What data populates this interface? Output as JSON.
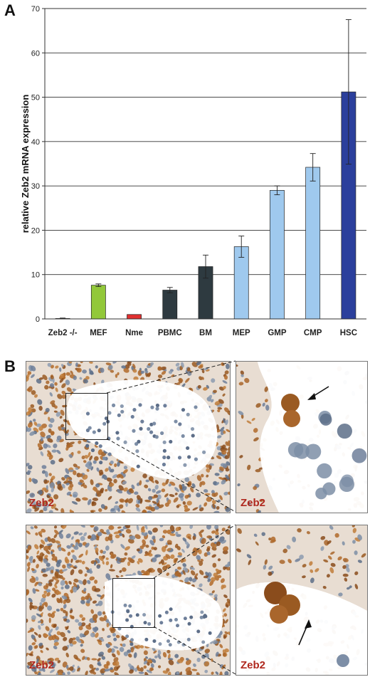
{
  "panels": {
    "a_letter": "A",
    "b_letter": "B"
  },
  "colors": {
    "green": "#92c83a",
    "red": "#e03030",
    "dark": "#2e3a40",
    "light_blue": "#9fc9ee",
    "dark_blue": "#2b3f9c",
    "stain_label": "#b0281e"
  },
  "chart_data": {
    "type": "bar",
    "title": "",
    "xlabel": "",
    "ylabel": "relative Zeb2 mRNA expression",
    "ylim": [
      0,
      70
    ],
    "yticks": [
      0,
      10,
      20,
      30,
      40,
      50,
      60,
      70
    ],
    "grid": true,
    "categories": [
      "Zeb2 -/-",
      "MEF",
      "Nme",
      "PBMC",
      "BM",
      "MEP",
      "GMP",
      "CMP",
      "HSC"
    ],
    "values": [
      0.1,
      7.6,
      1.0,
      6.5,
      11.8,
      16.3,
      29.0,
      34.2,
      51.2
    ],
    "errors": [
      0.1,
      0.3,
      0.0,
      0.6,
      2.6,
      2.4,
      1.0,
      3.1,
      16.3
    ],
    "bar_colors": [
      "#2e3a40",
      "#92c83a",
      "#e03030",
      "#2e3a40",
      "#2e3a40",
      "#9fc9ee",
      "#9fc9ee",
      "#9fc9ee",
      "#2b3f9c"
    ]
  },
  "micrographs": {
    "top_left_label": "Zeb2",
    "top_right_label": "Zeb2",
    "bottom_left_label": "Zeb2",
    "bottom_right_label": "Zeb2"
  }
}
